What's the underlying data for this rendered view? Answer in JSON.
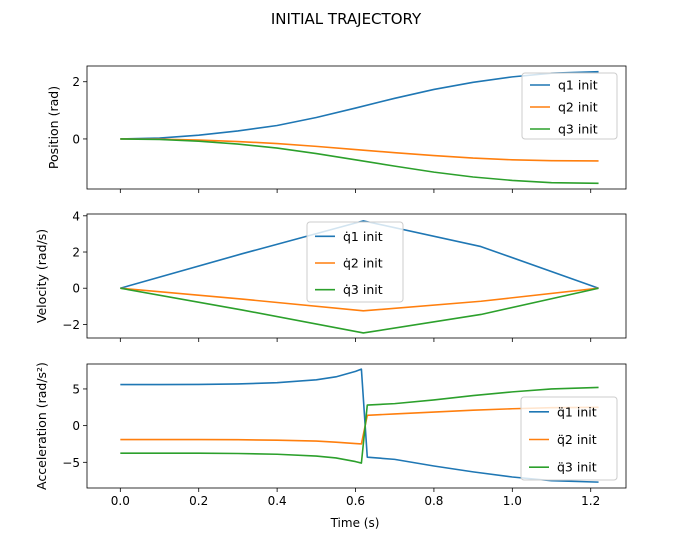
{
  "title": "INITIAL TRAJECTORY",
  "xlabel": "Time (s)",
  "colors": {
    "q1": "#1f77b4",
    "q2": "#ff7f0e",
    "q3": "#2ca02c"
  },
  "chart_data": [
    {
      "type": "line",
      "ylabel": "Position (rad)",
      "xlim": [
        -0.085,
        1.29
      ],
      "ylim": [
        -1.75,
        2.55
      ],
      "x_ticks": [
        0.0,
        0.2,
        0.4,
        0.6,
        0.8,
        1.0,
        1.2
      ],
      "y_ticks": [
        0,
        2
      ],
      "y_tick_labels": [
        "0",
        "2"
      ],
      "legend": "top-right",
      "series": [
        {
          "name": "q1 init",
          "x": [
            0,
            0.1,
            0.2,
            0.3,
            0.4,
            0.5,
            0.6,
            0.7,
            0.8,
            0.9,
            1.0,
            1.1,
            1.22
          ],
          "values": [
            0,
            0.03,
            0.13,
            0.28,
            0.47,
            0.75,
            1.08,
            1.42,
            1.73,
            1.98,
            2.17,
            2.3,
            2.35
          ]
        },
        {
          "name": "q2 init",
          "x": [
            0,
            0.1,
            0.2,
            0.3,
            0.4,
            0.5,
            0.6,
            0.7,
            0.8,
            0.9,
            1.0,
            1.1,
            1.22
          ],
          "values": [
            0,
            -0.01,
            -0.04,
            -0.09,
            -0.16,
            -0.26,
            -0.37,
            -0.48,
            -0.58,
            -0.67,
            -0.73,
            -0.76,
            -0.77
          ]
        },
        {
          "name": "q3 init",
          "x": [
            0,
            0.1,
            0.2,
            0.3,
            0.4,
            0.5,
            0.6,
            0.7,
            0.8,
            0.9,
            1.0,
            1.1,
            1.22
          ],
          "values": [
            0,
            -0.02,
            -0.08,
            -0.18,
            -0.32,
            -0.51,
            -0.73,
            -0.95,
            -1.16,
            -1.33,
            -1.45,
            -1.53,
            -1.55
          ]
        }
      ]
    },
    {
      "type": "line",
      "ylabel": "Velocity (rad/s)",
      "xlim": [
        -0.085,
        1.29
      ],
      "ylim": [
        -2.75,
        4.1
      ],
      "x_ticks": [
        0.0,
        0.2,
        0.4,
        0.6,
        0.8,
        1.0,
        1.2
      ],
      "y_ticks": [
        -2,
        0,
        2,
        4
      ],
      "y_tick_labels": [
        "−2",
        "0",
        "2",
        "4"
      ],
      "legend": "upper center",
      "series": [
        {
          "name": "q̇1 init",
          "x": [
            0,
            0.31,
            0.62,
            0.92,
            1.22
          ],
          "values": [
            0,
            1.9,
            3.72,
            2.3,
            0
          ]
        },
        {
          "name": "q̇2 init",
          "x": [
            0,
            0.31,
            0.62,
            0.92,
            1.22
          ],
          "values": [
            0,
            -0.6,
            -1.25,
            -0.72,
            0
          ]
        },
        {
          "name": "q̇3 init",
          "x": [
            0,
            0.31,
            0.62,
            0.92,
            1.22
          ],
          "values": [
            0,
            -1.2,
            -2.47,
            -1.45,
            0
          ]
        }
      ]
    },
    {
      "type": "line",
      "ylabel": "Acceleration (rad/s²)",
      "xlim": [
        -0.085,
        1.29
      ],
      "ylim": [
        -8.5,
        8.4
      ],
      "x_ticks": [
        0.0,
        0.2,
        0.4,
        0.6,
        0.8,
        1.0,
        1.2
      ],
      "x_tick_labels": [
        "0.0",
        "0.2",
        "0.4",
        "0.6",
        "0.8",
        "1.0",
        "1.2"
      ],
      "y_ticks": [
        -5,
        0,
        5
      ],
      "y_tick_labels": [
        "−5",
        "0",
        "5"
      ],
      "legend": "lower right",
      "series": [
        {
          "name": "q̈1 init",
          "x": [
            0,
            0.1,
            0.2,
            0.3,
            0.4,
            0.5,
            0.55,
            0.6,
            0.615,
            0.63,
            0.7,
            0.8,
            0.9,
            1.0,
            1.1,
            1.22
          ],
          "values": [
            5.6,
            5.6,
            5.62,
            5.68,
            5.85,
            6.25,
            6.65,
            7.4,
            7.7,
            -4.3,
            -4.6,
            -5.5,
            -6.3,
            -7.0,
            -7.5,
            -7.7
          ]
        },
        {
          "name": "q̈2 init",
          "x": [
            0,
            0.1,
            0.2,
            0.3,
            0.4,
            0.5,
            0.55,
            0.6,
            0.615,
            0.63,
            0.7,
            0.8,
            0.9,
            1.0,
            1.1,
            1.22
          ],
          "values": [
            -1.9,
            -1.9,
            -1.9,
            -1.92,
            -1.98,
            -2.1,
            -2.25,
            -2.45,
            -2.5,
            1.4,
            1.6,
            1.85,
            2.1,
            2.3,
            2.45,
            2.5
          ]
        },
        {
          "name": "q̈3 init",
          "x": [
            0,
            0.1,
            0.2,
            0.3,
            0.4,
            0.5,
            0.55,
            0.6,
            0.615,
            0.63,
            0.7,
            0.8,
            0.9,
            1.0,
            1.1,
            1.22
          ],
          "values": [
            -3.75,
            -3.75,
            -3.76,
            -3.8,
            -3.9,
            -4.15,
            -4.4,
            -4.9,
            -5.1,
            2.8,
            3.0,
            3.5,
            4.1,
            4.6,
            5.0,
            5.2
          ]
        }
      ]
    }
  ]
}
